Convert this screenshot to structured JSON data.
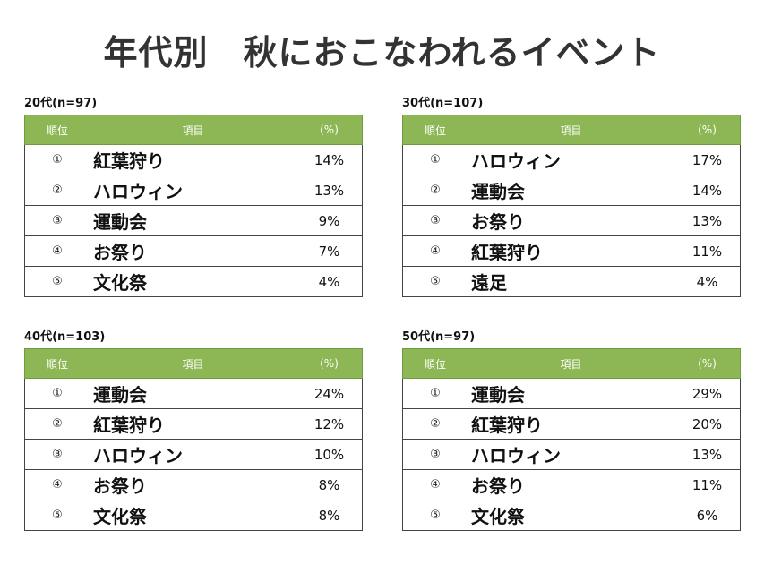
{
  "title": "年代別　秋におこなわれるイベント",
  "header": {
    "rank": "順位",
    "item": "項目",
    "pct": "(%)"
  },
  "groups": [
    {
      "label": "20代(n=97)",
      "rows": [
        {
          "rank": "①",
          "item": "紅葉狩り",
          "pct": "14%"
        },
        {
          "rank": "②",
          "item": "ハロウィン",
          "pct": "13%"
        },
        {
          "rank": "③",
          "item": "運動会",
          "pct": "9%"
        },
        {
          "rank": "④",
          "item": "お祭り",
          "pct": "7%"
        },
        {
          "rank": "⑤",
          "item": "文化祭",
          "pct": "4%"
        }
      ]
    },
    {
      "label": "30代(n=107)",
      "rows": [
        {
          "rank": "①",
          "item": "ハロウィン",
          "pct": "17%"
        },
        {
          "rank": "②",
          "item": "運動会",
          "pct": "14%"
        },
        {
          "rank": "③",
          "item": "お祭り",
          "pct": "13%"
        },
        {
          "rank": "④",
          "item": "紅葉狩り",
          "pct": "11%"
        },
        {
          "rank": "⑤",
          "item": "遠足",
          "pct": "4%"
        }
      ]
    },
    {
      "label": "40代(n=103)",
      "rows": [
        {
          "rank": "①",
          "item": "運動会",
          "pct": "24%"
        },
        {
          "rank": "②",
          "item": "紅葉狩り",
          "pct": "12%"
        },
        {
          "rank": "③",
          "item": "ハロウィン",
          "pct": "10%"
        },
        {
          "rank": "④",
          "item": "お祭り",
          "pct": "8%"
        },
        {
          "rank": "⑤",
          "item": "文化祭",
          "pct": "8%"
        }
      ]
    },
    {
      "label": "50代(n=97)",
      "rows": [
        {
          "rank": "①",
          "item": "運動会",
          "pct": "29%"
        },
        {
          "rank": "②",
          "item": "紅葉狩り",
          "pct": "20%"
        },
        {
          "rank": "③",
          "item": "ハロウィン",
          "pct": "13%"
        },
        {
          "rank": "④",
          "item": "お祭り",
          "pct": "11%"
        },
        {
          "rank": "⑤",
          "item": "文化祭",
          "pct": "6%"
        }
      ]
    }
  ],
  "colors": {
    "header_bg": "#8db755",
    "header_text": "#ffffff"
  }
}
